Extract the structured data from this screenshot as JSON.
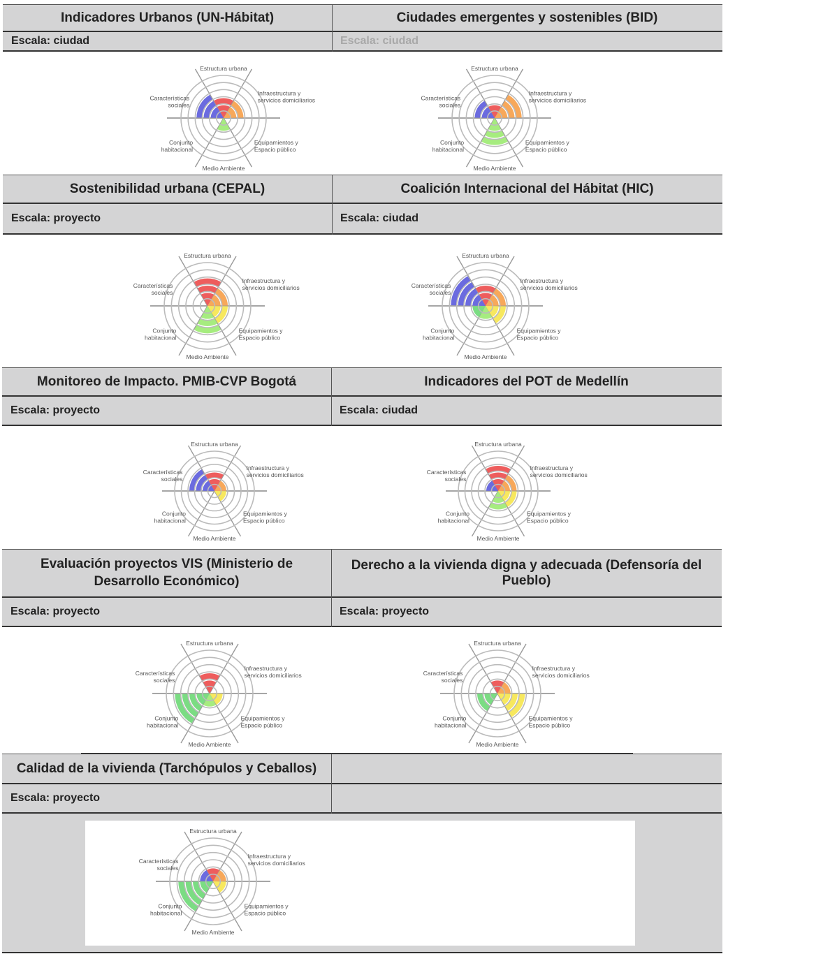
{
  "panels": [
    {
      "title": "Indicadores Urbanos (UN-Hábitat)",
      "scale": "Escala: ciudad"
    },
    {
      "title": "Ciudades emergentes y sostenibles (BID)",
      "scale": "Escala: ciudad"
    },
    {
      "title": "Sostenibilidad urbana (CEPAL)",
      "scale": "Escala: proyecto"
    },
    {
      "title": "Coalición Internacional del Hábitat (HIC)",
      "scale": "Escala: ciudad"
    },
    {
      "title": "Monitoreo de Impacto. PMIB-CVP Bogotá",
      "scale": "Escala: proyecto"
    },
    {
      "title": "Indicadores del POT de Medellín",
      "scale": "Escala: ciudad"
    },
    {
      "title": "Evaluación proyectos VIS (Ministerio de Desarrollo Económico)",
      "scale": "Escala: proyecto"
    },
    {
      "title": "Derecho a la vivienda digna y adecuada (Defensoría del Pueblo)",
      "scale": "Escala: proyecto"
    },
    {
      "title": "Calidad de la vivienda (Tarchópulos y Ceballos)",
      "scale": "Escala: proyecto"
    }
  ],
  "chart_data": {
    "type": "polar-area",
    "max_level": 5,
    "categories": [
      {
        "label": "Estructura urbana",
        "color": "#ee5d5d"
      },
      {
        "label": "Infraestructura y servicios domiciliarios",
        "color": "#f7a85a"
      },
      {
        "label": "Equipamientos y Espacio público",
        "color": "#f7e85e"
      },
      {
        "label": "Medio Ambiente",
        "color": "#a6ec7f"
      },
      {
        "label": "Conjunto habitacional",
        "color": "#7bdc83"
      },
      {
        "label": "Características sociales",
        "color": "#6b6bdf"
      }
    ],
    "label_lines": [
      [
        "Estructura urbana"
      ],
      [
        "Infraestructura y",
        "servicios domiciliarios"
      ],
      [
        "Equipamientos y",
        "Espacio público"
      ],
      [
        "Medio Ambiente"
      ],
      [
        "Conjunto",
        "habitacional"
      ],
      [
        "Características",
        "sociales"
      ]
    ],
    "charts": [
      {
        "panel": "Indicadores Urbanos (UN-Hábitat)",
        "values": [
          2,
          2,
          0,
          1,
          0,
          3
        ]
      },
      {
        "panel": "Ciudades emergentes y sostenibles (BID)",
        "values": [
          1,
          3,
          0,
          3,
          0,
          2
        ]
      },
      {
        "panel": "Sostenibilidad urbana (CEPAL)",
        "values": [
          3,
          2,
          2,
          3,
          0,
          0
        ]
      },
      {
        "panel": "Coalición Internacional del Hábitat (HIC)",
        "values": [
          2,
          2,
          2,
          1,
          1,
          4
        ]
      },
      {
        "panel": "Monitoreo de Impacto. PMIB-CVP Bogotá",
        "values": [
          2,
          1,
          1,
          0,
          0,
          3
        ]
      },
      {
        "panel": "Indicadores del POT de Medellín",
        "values": [
          3,
          2,
          2,
          2,
          0,
          1
        ]
      },
      {
        "panel": "Evaluación proyectos VIS (Ministerio de Desarrollo Económico)",
        "values": [
          2,
          0,
          1,
          1,
          4,
          0
        ]
      },
      {
        "panel": "Derecho a la vivienda digna y adecuada (Defensoría del Pueblo)",
        "values": [
          1,
          1,
          3,
          0,
          2,
          0
        ]
      },
      {
        "panel": "Calidad de la vivienda (Tarchópulos y Ceballos)",
        "values": [
          1,
          1,
          1,
          0,
          4,
          1
        ]
      }
    ]
  }
}
